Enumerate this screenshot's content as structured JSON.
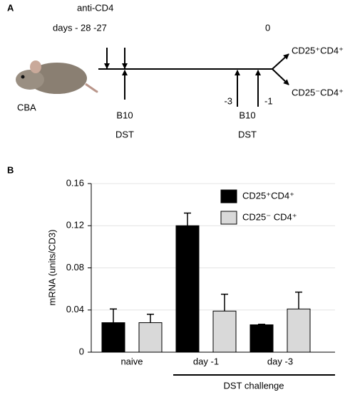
{
  "panel_labels": [
    "A",
    "B"
  ],
  "diagram": {
    "treatment": "anti-CD4",
    "days": "days - 28 -27",
    "day_zero": "0",
    "mouse": "CBA",
    "donor_1": "B10",
    "dst_1": "DST",
    "day_minus_3": "-3",
    "donor_2": "B10",
    "dst_2": "DST",
    "day_minus_1": "-1",
    "outputs": [
      "CD25⁺CD4⁺",
      "CD25⁻CD4⁺"
    ]
  },
  "chart_data": {
    "type": "bar",
    "y_label": "mRNA (units/CD3)",
    "categories": [
      "naive",
      "day -1",
      "day -3"
    ],
    "group_label": "DST challenge",
    "series": [
      {
        "name": "CD25⁺CD4⁺",
        "color": "#000000",
        "values": [
          0.028,
          0.12,
          0.026
        ],
        "errors": [
          0.013,
          0.012,
          0.0005
        ]
      },
      {
        "name": "CD25⁻ CD4⁺",
        "color": "#d9d9d9",
        "values": [
          0.028,
          0.039,
          0.041
        ],
        "errors": [
          0.008,
          0.016,
          0.016
        ]
      }
    ],
    "ylim": [
      0,
      0.16
    ],
    "yticks": [
      0,
      0.04,
      0.08,
      0.12,
      0.16
    ],
    "grid": true,
    "legend": "upper right"
  }
}
